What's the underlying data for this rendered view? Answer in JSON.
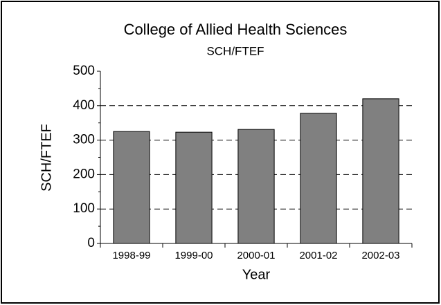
{
  "chart_data": {
    "type": "bar",
    "title": "College of Allied Health Sciences",
    "subtitle": "SCH/FTEF",
    "x_label": "Year",
    "y_label": "SCH/FTEF",
    "categories": [
      "1998-99",
      "1999-00",
      "2000-01",
      "2001-02",
      "2002-03"
    ],
    "values": [
      325,
      323,
      331,
      378,
      420
    ],
    "color": "#808080",
    "ylim": [
      0,
      500
    ],
    "yticks": [
      0,
      100,
      200,
      300,
      400,
      500
    ],
    "grid": true
  }
}
